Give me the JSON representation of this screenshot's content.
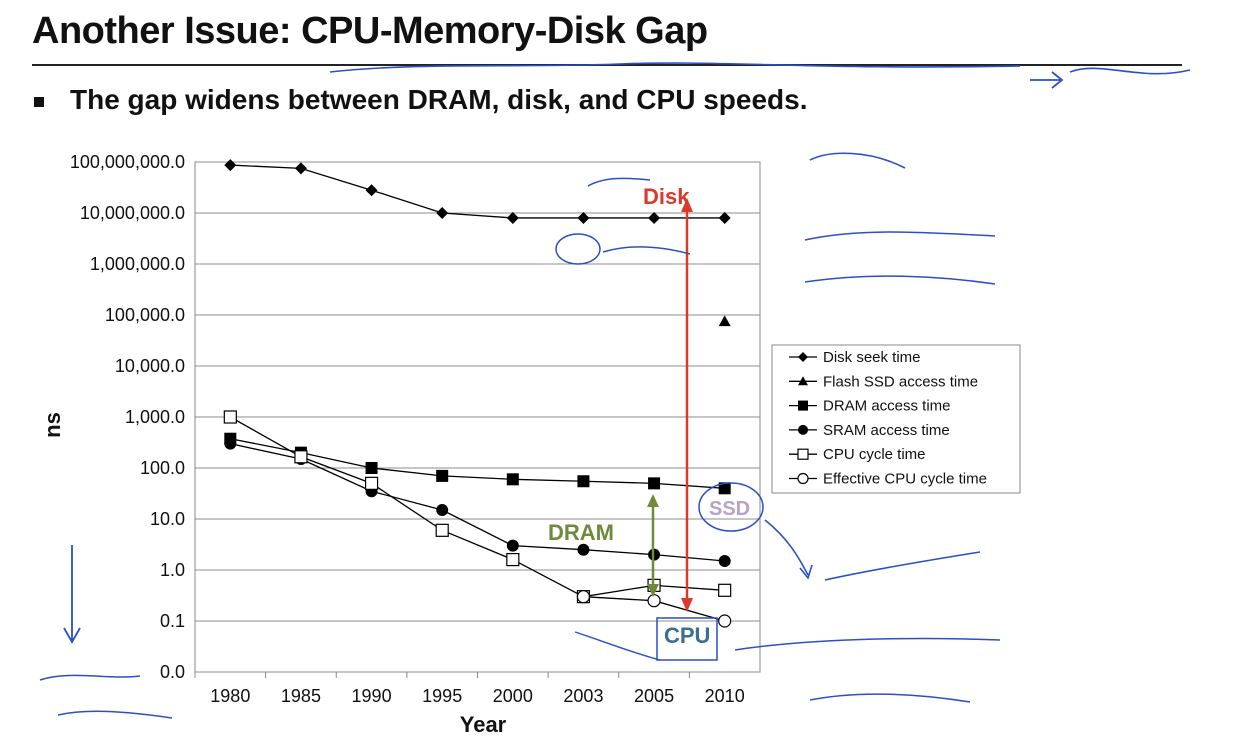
{
  "slide": {
    "title": "Another Issue: CPU-Memory-Disk Gap",
    "bullet": "The gap widens between DRAM, disk, and CPU speeds."
  },
  "annotations": {
    "disk": "Disk",
    "dram": "DRAM",
    "ssd": "SSD",
    "cpu": "CPU"
  },
  "colors": {
    "disk": "#d93a2b",
    "dram": "#6f8a3a",
    "ssd": "#b6a3c8",
    "cpu": "#3a6f8f",
    "ink": "#2a4fc8"
  },
  "chart_data": {
    "type": "line",
    "xlabel": "Year",
    "ylabel": "ns",
    "log_scale": true,
    "categories": [
      "1980",
      "1985",
      "1990",
      "1995",
      "2000",
      "2003",
      "2005",
      "2010"
    ],
    "y_ticks": [
      "100,000,000.0",
      "10,000,000.0",
      "1,000,000.0",
      "100,000.0",
      "10,000.0",
      "1,000.0",
      "100.0",
      "10.0",
      "1.0",
      "0.1",
      "0.0"
    ],
    "ylim": [
      0.01,
      100000000
    ],
    "grid": true,
    "legend_position": "right",
    "series": [
      {
        "name": "Disk seek time",
        "marker": "diamond",
        "values": [
          87000000,
          75000000,
          28000000,
          10000000,
          8000000,
          8000000,
          8000000,
          8000000
        ]
      },
      {
        "name": "Flash SSD access time",
        "marker": "triangle",
        "values": [
          null,
          null,
          null,
          null,
          null,
          null,
          null,
          75000
        ]
      },
      {
        "name": "DRAM access time",
        "marker": "square-filled",
        "values": [
          375,
          200,
          100,
          70,
          60,
          55,
          50,
          40
        ]
      },
      {
        "name": "SRAM access time",
        "marker": "circle-filled",
        "values": [
          300,
          150,
          35,
          15,
          3,
          2.5,
          2,
          1.5
        ]
      },
      {
        "name": "CPU cycle time",
        "marker": "square-open",
        "values": [
          1000,
          166,
          50,
          6,
          1.6,
          0.3,
          0.5,
          0.4
        ]
      },
      {
        "name": "Effective CPU cycle time",
        "marker": "circle-open",
        "values": [
          null,
          null,
          null,
          null,
          null,
          0.3,
          0.25,
          0.1
        ]
      }
    ]
  }
}
